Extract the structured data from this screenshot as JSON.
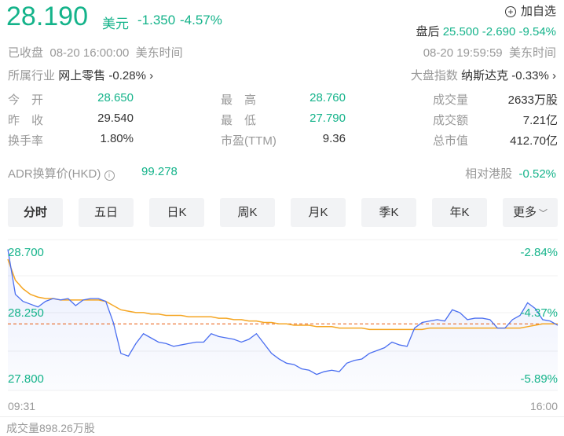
{
  "quote": {
    "price": "28.190",
    "currency": "美元",
    "change": "-1.350",
    "change_pct": "-4.57%",
    "status": "已收盘",
    "time": "08-20 16:00:00",
    "tz": "美东时间"
  },
  "watchlist": {
    "label": "加自选",
    "icon": "plus-circle-icon"
  },
  "after_hours": {
    "label": "盘后",
    "price": "25.500",
    "change": "-2.690",
    "change_pct": "-9.54%",
    "time": "08-20 19:59:59",
    "tz": "美东时间"
  },
  "industry": {
    "label": "所属行业",
    "name": "网上零售",
    "change": "-0.28%"
  },
  "index": {
    "label": "大盘指数",
    "name": "纳斯达克",
    "change": "-0.33%"
  },
  "stats": [
    {
      "label": "今　开",
      "value": "28.650"
    },
    {
      "label": "最　高",
      "value": "28.760"
    },
    {
      "label": "成交量",
      "value": "2633万股"
    },
    {
      "label": "昨　收",
      "value": "29.540"
    },
    {
      "label": "最　低",
      "value": "27.790"
    },
    {
      "label": "成交额",
      "value": "7.21亿"
    },
    {
      "label": "换手率",
      "value": "1.80%"
    },
    {
      "label": "市盈(TTM)",
      "value": "9.36"
    },
    {
      "label": "总市值",
      "value": "412.70亿"
    }
  ],
  "adr": {
    "label": "ADR换算价(HKD)",
    "value": "99.278",
    "relative_label": "相对港股",
    "relative_value": "-0.52%"
  },
  "tabs": [
    "分时",
    "五日",
    "日K",
    "周K",
    "月K",
    "季K",
    "年K",
    "更多"
  ],
  "colors": {
    "down": "#14b38a",
    "price_line": "#4a6ef0",
    "avg_line": "#f5a623",
    "close_line": "#e8590c"
  },
  "chart_data": {
    "type": "line",
    "y_labels_left": [
      "28.700",
      "28.250",
      "27.800"
    ],
    "y_labels_right": [
      "-2.84%",
      "-4.37%",
      "-5.89%"
    ],
    "ylim": [
      27.8,
      28.7
    ],
    "x_labels": [
      "09:31",
      "16:00"
    ],
    "reference_price": 28.19,
    "series": [
      {
        "values": [
          28.72,
          28.4,
          28.35,
          28.33,
          28.31,
          28.35,
          28.37,
          28.36,
          28.37,
          28.32,
          28.36,
          28.37,
          28.37,
          28.35,
          28.2,
          27.98,
          27.96,
          28.05,
          28.12,
          28.09,
          28.06,
          28.05,
          28.03,
          28.04,
          28.05,
          28.06,
          28.06,
          28.12,
          28.1,
          28.09,
          28.08,
          28.06,
          28.08,
          28.12,
          28.05,
          27.98,
          27.94,
          27.91,
          27.9,
          27.87,
          27.86,
          27.83,
          27.85,
          27.86,
          27.85,
          27.91,
          27.93,
          27.94,
          27.98,
          28.0,
          28.02,
          28.06,
          28.04,
          28.03,
          28.16,
          28.2,
          28.21,
          28.22,
          28.21,
          28.29,
          28.27,
          28.22,
          28.23,
          28.23,
          28.22,
          28.16,
          28.16,
          28.22,
          28.25,
          28.34,
          28.3,
          28.22,
          28.21,
          28.18
        ]
      },
      {
        "values": [
          28.65,
          28.5,
          28.44,
          28.4,
          28.38,
          28.37,
          28.37,
          28.36,
          28.36,
          28.36,
          28.36,
          28.36,
          28.36,
          28.35,
          28.32,
          28.29,
          28.28,
          28.27,
          28.27,
          28.26,
          28.26,
          28.25,
          28.25,
          28.25,
          28.24,
          28.24,
          28.24,
          28.24,
          28.23,
          28.23,
          28.22,
          28.22,
          28.21,
          28.21,
          28.2,
          28.2,
          28.19,
          28.19,
          28.18,
          28.18,
          28.18,
          28.17,
          28.17,
          28.17,
          28.16,
          28.16,
          28.16,
          28.16,
          28.15,
          28.15,
          28.15,
          28.15,
          28.15,
          28.15,
          28.15,
          28.15,
          28.16,
          28.16,
          28.16,
          28.16,
          28.16,
          28.16,
          28.16,
          28.16,
          28.16,
          28.16,
          28.16,
          28.16,
          28.16,
          28.17,
          28.18,
          28.19,
          28.19,
          28.19
        ]
      }
    ]
  },
  "volume": "成交量898.26万股"
}
